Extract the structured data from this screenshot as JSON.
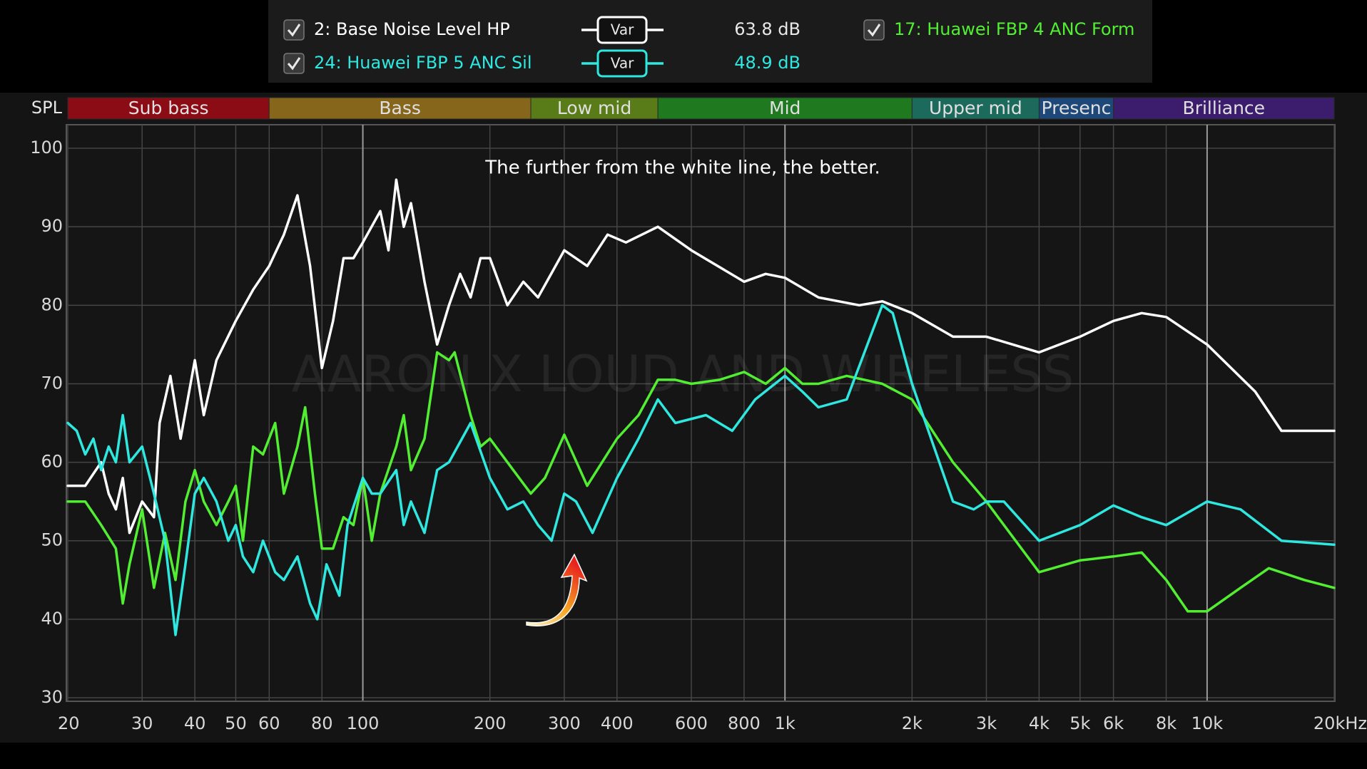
{
  "chart_data": {
    "type": "line",
    "x_scale": "log",
    "y_label": "SPL",
    "annotation": "The further from the white line, the better.",
    "watermark": "AARON X LOUD AND WIRELESS",
    "xlim": [
      20,
      20000
    ],
    "ylim": [
      30,
      103
    ],
    "grid": true,
    "xticks": [
      20,
      30,
      40,
      50,
      60,
      80,
      100,
      200,
      300,
      400,
      600,
      800,
      {
        "value": 1000,
        "label": "1k"
      },
      {
        "value": 2000,
        "label": "2k"
      },
      {
        "value": 3000,
        "label": "3k"
      },
      {
        "value": 4000,
        "label": "4k"
      },
      {
        "value": 5000,
        "label": "5k"
      },
      {
        "value": 6000,
        "label": "6k"
      },
      {
        "value": 8000,
        "label": "8k"
      },
      {
        "value": 10000,
        "label": "10k"
      },
      {
        "value": 20000,
        "label": "20kHz"
      }
    ],
    "yticks": [
      30,
      40,
      50,
      60,
      70,
      80,
      90,
      100
    ],
    "bands": [
      {
        "label": "Sub bass",
        "from": 20,
        "to": 60,
        "color": "#8c0c16"
      },
      {
        "label": "Bass",
        "from": 60,
        "to": 250,
        "color": "#86661a"
      },
      {
        "label": "Low mid",
        "from": 250,
        "to": 500,
        "color": "#5a7c18"
      },
      {
        "label": "Mid",
        "from": 500,
        "to": 2000,
        "color": "#1f7a1f"
      },
      {
        "label": "Upper mid",
        "from": 2000,
        "to": 4000,
        "color": "#1c6a5c"
      },
      {
        "label": "Presenc",
        "from": 4000,
        "to": 6000,
        "color": "#1e4878"
      },
      {
        "label": "Brilliance",
        "from": 6000,
        "to": 20000,
        "color": "#3c1c6c"
      }
    ],
    "series": [
      {
        "name": "2: Base Noise Level HP",
        "color": "#ffffff",
        "button": "Var",
        "level": "63.8 dB",
        "x": [
          20,
          22,
          24,
          25,
          26,
          27,
          28,
          30,
          32,
          33,
          35,
          37,
          40,
          42,
          45,
          50,
          55,
          60,
          65,
          70,
          75,
          80,
          85,
          90,
          95,
          100,
          110,
          115,
          120,
          125,
          130,
          140,
          150,
          160,
          170,
          180,
          190,
          200,
          220,
          240,
          260,
          300,
          340,
          380,
          420,
          500,
          600,
          800,
          900,
          1000,
          1200,
          1500,
          1700,
          2000,
          2500,
          3000,
          4000,
          5000,
          6000,
          7000,
          8000,
          10000,
          13000,
          15000,
          20000
        ],
        "values": [
          57,
          57,
          60,
          56,
          54,
          58,
          51,
          55,
          53,
          65,
          71,
          63,
          73,
          66,
          73,
          78,
          82,
          85,
          89,
          94,
          85,
          72,
          78,
          86,
          86,
          88,
          92,
          87,
          96,
          90,
          93,
          83,
          75,
          80,
          84,
          81,
          86,
          86,
          80,
          83,
          81,
          87,
          85,
          89,
          88,
          90,
          87,
          83,
          84,
          83.5,
          81,
          80,
          80.5,
          79,
          76,
          76,
          74,
          76,
          78,
          79,
          78.5,
          75,
          69,
          64,
          64
        ]
      },
      {
        "name": "17: Huawei FBP 4 ANC Form",
        "color": "#52ee32",
        "x": [
          20,
          22,
          24,
          26,
          27,
          28,
          30,
          32,
          34,
          36,
          38,
          40,
          42,
          45,
          48,
          50,
          52,
          55,
          58,
          62,
          65,
          70,
          73,
          77,
          80,
          85,
          90,
          95,
          100,
          105,
          110,
          120,
          125,
          130,
          140,
          150,
          160,
          165,
          180,
          190,
          200,
          220,
          250,
          270,
          300,
          340,
          400,
          450,
          500,
          550,
          600,
          700,
          800,
          900,
          1000,
          1100,
          1200,
          1400,
          1700,
          2000,
          2500,
          3000,
          4000,
          5000,
          6000,
          7000,
          8000,
          9000,
          10000,
          12000,
          14000,
          17000,
          20000
        ],
        "values": [
          55,
          55,
          52,
          49,
          42,
          47,
          54,
          44,
          51,
          45,
          55,
          59,
          55,
          52,
          55,
          57,
          50,
          62,
          61,
          65,
          56,
          62,
          67,
          56,
          49,
          49,
          53,
          52,
          58,
          50,
          56,
          62,
          66,
          59,
          63,
          74,
          73,
          74,
          66,
          62,
          63,
          60,
          56,
          58,
          63.5,
          57,
          63,
          66,
          70.5,
          70.5,
          70,
          70.5,
          71.5,
          70,
          72,
          70,
          70,
          71,
          70,
          68,
          60,
          55,
          46,
          47.5,
          48,
          48.5,
          45,
          41,
          41,
          44,
          46.5,
          45,
          44
        ]
      },
      {
        "name": "24: Huawei FBP 5 ANC Sil",
        "color": "#2ee8e0",
        "button": "Var",
        "level": "48.9 dB",
        "x": [
          20,
          21,
          22,
          23,
          24,
          25,
          26,
          27,
          28,
          30,
          32,
          34,
          36,
          38,
          40,
          42,
          45,
          48,
          50,
          52,
          55,
          58,
          62,
          65,
          70,
          75,
          78,
          82,
          88,
          92,
          100,
          105,
          110,
          120,
          125,
          130,
          140,
          150,
          160,
          180,
          200,
          220,
          240,
          260,
          280,
          300,
          320,
          350,
          400,
          450,
          500,
          550,
          650,
          750,
          850,
          1000,
          1100,
          1200,
          1400,
          1700,
          1800,
          2000,
          2500,
          2800,
          3000,
          3300,
          4000,
          5000,
          6000,
          7000,
          8000,
          10000,
          12000,
          15000,
          20000
        ],
        "values": [
          65,
          64,
          61,
          63,
          59,
          62,
          60,
          66,
          60,
          62,
          56,
          50,
          38,
          47,
          56,
          58,
          55,
          50,
          52,
          48,
          46,
          50,
          46,
          45,
          48,
          42,
          40,
          47,
          43,
          52,
          58,
          56,
          56,
          59,
          52,
          55,
          51,
          59,
          60,
          65,
          58,
          54,
          55,
          52,
          50,
          56,
          55,
          51,
          58,
          63,
          68,
          65,
          66,
          64,
          68,
          71,
          69,
          67,
          68,
          80,
          79,
          70,
          55,
          54,
          55,
          55,
          50,
          52,
          54.5,
          53,
          52,
          55,
          54,
          50,
          49.5
        ]
      }
    ]
  }
}
